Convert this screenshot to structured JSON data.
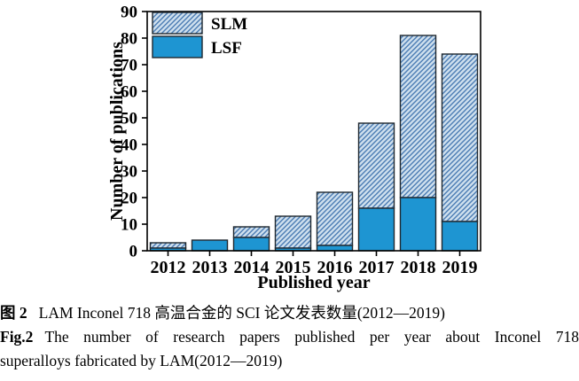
{
  "caption": {
    "cn_label": "图 2",
    "cn_text": "LAM Inconel 718 高温合金的 SCI 论文发表数量(2012—2019)",
    "en_label": "Fig.2",
    "en_line1": "The number of research papers published per year about Inconel 718",
    "en_line2": "superalloys fabricated by LAM(2012—2019)"
  },
  "chart_data": {
    "type": "bar",
    "stacked": true,
    "title": "",
    "xlabel": "Published year",
    "ylabel": "Number of publications",
    "categories": [
      "2012",
      "2013",
      "2014",
      "2015",
      "2016",
      "2017",
      "2018",
      "2019"
    ],
    "series": [
      {
        "name": "LSF",
        "pattern": "solid",
        "values": [
          1,
          4,
          5,
          1,
          2,
          16,
          20,
          11
        ]
      },
      {
        "name": "SLM",
        "pattern": "diagonal-hatch",
        "values": [
          2,
          0,
          4,
          12,
          20,
          32,
          61,
          63
        ]
      }
    ],
    "stack_totals": [
      3,
      4,
      9,
      13,
      22,
      48,
      81,
      74
    ],
    "ylim": [
      0,
      90
    ],
    "ytick_step": 10,
    "grid": false,
    "legend": {
      "position": "top-left-inside",
      "entries": [
        "SLM",
        "LSF"
      ]
    },
    "colors": {
      "lsf_solid": "#1e95d2",
      "slm_hatch_bg": "#cfe0ee",
      "slm_hatch_line": "#4f7fb5",
      "bar_border": "#20282f",
      "axis": "#000000",
      "text": "#000000"
    }
  }
}
